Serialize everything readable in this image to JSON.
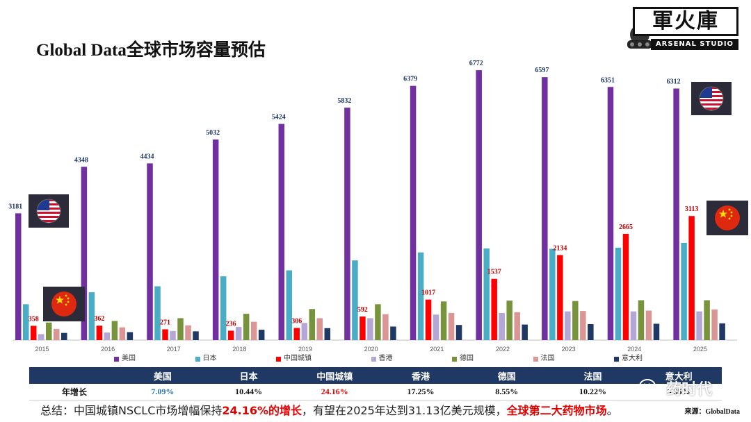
{
  "title": "Global Data全球市场容量预估",
  "logo": {
    "text": "軍火庫",
    "sub": "ARSENAL STUDIO"
  },
  "chart_data": {
    "type": "bar",
    "categories": [
      "2015",
      "2016",
      "2017",
      "2018",
      "2019",
      "2020",
      "2021",
      "2022",
      "2023",
      "2024",
      "2025"
    ],
    "ylim": [
      0,
      7000
    ],
    "grid": false,
    "legend_position": "bottom",
    "series": [
      {
        "name": "美国",
        "color": "#7030a0",
        "values": [
          3181,
          4348,
          4434,
          5032,
          5424,
          5832,
          6379,
          6772,
          6597,
          6351,
          6312
        ],
        "labels": [
          "3181",
          "4348",
          "4434",
          "5032",
          "5424",
          "5832",
          "6379",
          "6772",
          "6597",
          "6351",
          "6312"
        ],
        "label_color": "#1f3864"
      },
      {
        "name": "日本",
        "color": "#4bacc6",
        "values": [
          900,
          1200,
          1350,
          1600,
          1750,
          2000,
          2200,
          2300,
          2290,
          2320,
          2440
        ],
        "labels": []
      },
      {
        "name": "中国城镇",
        "color": "#ff0000",
        "values": [
          358,
          362,
          271,
          236,
          306,
          592,
          1017,
          1537,
          2134,
          2665,
          3113
        ],
        "labels": [
          "358",
          "362",
          "271",
          "236",
          "306",
          "592",
          "1017",
          "1537",
          "2134",
          "2665",
          "3113"
        ],
        "label_color": "#c00000"
      },
      {
        "name": "香港",
        "color": "#b4a7d6",
        "values": [
          150,
          190,
          230,
          330,
          430,
          550,
          640,
          680,
          720,
          720,
          720
        ],
        "labels": []
      },
      {
        "name": "德国",
        "color": "#77933c",
        "values": [
          440,
          480,
          550,
          660,
          780,
          900,
          970,
          990,
          980,
          1000,
          1000
        ],
        "labels": []
      },
      {
        "name": "法国",
        "color": "#d99694",
        "values": [
          280,
          320,
          370,
          460,
          550,
          650,
          680,
          700,
          730,
          740,
          770
        ],
        "labels": []
      },
      {
        "name": "意大利",
        "color": "#1f3864",
        "values": [
          180,
          200,
          220,
          260,
          300,
          340,
          380,
          390,
          400,
          410,
          420
        ],
        "labels": []
      }
    ]
  },
  "table": {
    "headers": [
      "",
      "美国",
      "日本",
      "中国城镇",
      "香港",
      "德国",
      "法国",
      "意大利"
    ],
    "row_label": "年增长",
    "values": [
      "7.09%",
      "10.44%",
      "24.16%",
      "17.25%",
      "8.55%",
      "10.22%",
      "5.35%"
    ]
  },
  "footer": {
    "prefix": "总结：中国城镇NSCLC市场增幅保持",
    "highlight1": "24.16%的增长",
    "middle": "，有望在2025年达到31.13亿美元规模，",
    "highlight2": "全球第二大药物市场",
    "suffix": "。"
  },
  "source": "来源：GlobalData",
  "watermark": "药时代",
  "icons": {
    "us_flag": "us-flag-icon",
    "cn_flag": "china-flag-icon",
    "wechat": "wechat-icon",
    "logo": "tank-emblem-icon"
  }
}
